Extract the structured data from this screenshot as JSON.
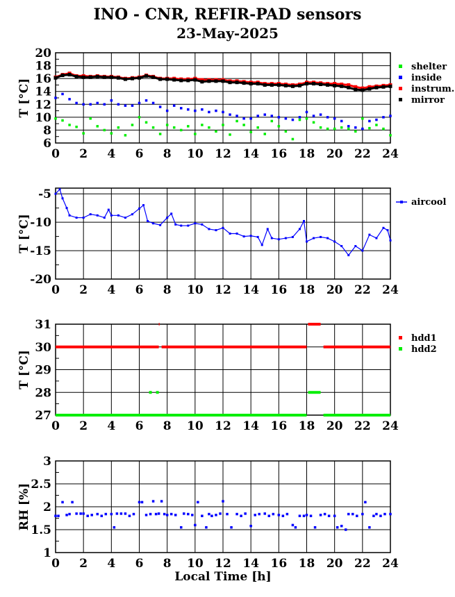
{
  "title": "INO - CNR, REFIR-PAD sensors",
  "date": "23-May-2025",
  "colors": {
    "red": "#ff0000",
    "blue": "#0000ff",
    "green": "#00ee00",
    "black": "#000000"
  },
  "chart_data": [
    {
      "type": "scatter",
      "ylabel": "T [°C]",
      "xlim": [
        0,
        24
      ],
      "ylim": [
        6,
        20
      ],
      "xticks": [
        "0",
        "2",
        "4",
        "6",
        "8",
        "10",
        "12",
        "14",
        "16",
        "18",
        "20",
        "22",
        "24"
      ],
      "yticks": [
        "6",
        "8",
        "10",
        "12",
        "14",
        "16",
        "18",
        "20"
      ],
      "legend_position": "right",
      "series": [
        {
          "name": "shelter",
          "color": "#00ee00",
          "x": [
            0,
            0.5,
            1,
            1.5,
            2,
            2.5,
            3,
            3.5,
            4,
            4.5,
            5,
            5.5,
            6,
            6.5,
            7,
            7.5,
            8,
            8.5,
            9,
            9.5,
            10,
            10.5,
            11,
            11.5,
            12,
            12.5,
            13,
            13.5,
            14,
            14.5,
            15,
            15.5,
            16,
            16.5,
            17,
            17.5,
            18,
            18.5,
            19,
            19.5,
            20,
            20.5,
            21,
            21.5,
            22,
            22.5,
            23,
            23.5,
            24
          ],
          "y": [
            9.8,
            9.5,
            8.8,
            8.5,
            7.5,
            9.8,
            8.6,
            8,
            7.5,
            8.4,
            7.2,
            8.8,
            10,
            9.2,
            8.4,
            7.4,
            8.8,
            8.4,
            8,
            8.6,
            7.4,
            8.8,
            8.4,
            7.8,
            8.8,
            7.3,
            9.4,
            8.8,
            7.7,
            8.4,
            7.4,
            9.4,
            8.6,
            7.8,
            6.6,
            9.6,
            9.8,
            9.2,
            8.4,
            8.2,
            8.2,
            8.4,
            8.2,
            7.8,
            9.8,
            8.3,
            8.8,
            8.2,
            7.2
          ]
        },
        {
          "name": "inside",
          "color": "#0000ff",
          "x": [
            0,
            0.5,
            1,
            1.5,
            2,
            2.5,
            3,
            3.5,
            4,
            4.5,
            5,
            5.5,
            6,
            6.5,
            7,
            7.5,
            8,
            8.5,
            9,
            9.5,
            10,
            10.5,
            11,
            11.5,
            12,
            12.5,
            13,
            13.5,
            14,
            14.5,
            15,
            15.5,
            16,
            16.5,
            17,
            17.5,
            18,
            18.5,
            19,
            19.5,
            20,
            20.5,
            21,
            21.5,
            22,
            22.5,
            23,
            23.5,
            24
          ],
          "y": [
            13,
            13.6,
            12.8,
            12.2,
            12,
            12,
            12.2,
            12,
            12.6,
            12,
            11.8,
            11.8,
            12.2,
            12.6,
            12.2,
            11.6,
            11,
            11.8,
            11.4,
            11.2,
            11,
            11.2,
            10.8,
            11,
            10.8,
            10.4,
            10.2,
            9.8,
            9.8,
            10.2,
            10.4,
            10.2,
            10,
            9.8,
            9.6,
            10,
            10.8,
            10.2,
            10.4,
            10,
            9.8,
            9.4,
            8.6,
            8.4,
            8.2,
            9.4,
            9.6,
            10,
            10.2
          ]
        },
        {
          "name": "instrum.",
          "color": "#ff0000",
          "x": [
            0,
            0.5,
            1,
            1.5,
            2,
            2.5,
            3,
            3.5,
            4,
            4.5,
            5,
            5.5,
            6,
            6.5,
            7,
            7.5,
            8,
            8.5,
            9,
            9.5,
            10,
            10.5,
            11,
            11.5,
            12,
            12.5,
            13,
            13.5,
            14,
            14.5,
            15,
            15.5,
            16,
            16.5,
            17,
            17.5,
            18,
            18.5,
            19,
            19.5,
            20,
            20.5,
            21,
            21.5,
            22,
            22.5,
            23,
            23.5,
            24
          ],
          "y": [
            16.2,
            16.6,
            16.8,
            16.4,
            16.4,
            16.3,
            16.4,
            16.3,
            16.3,
            16.2,
            16,
            16.1,
            16.2,
            16.5,
            16.3,
            16,
            16,
            16,
            15.9,
            15.9,
            16,
            15.8,
            15.8,
            15.8,
            15.8,
            15.6,
            15.6,
            15.5,
            15.4,
            15.4,
            15.2,
            15.2,
            15.2,
            15.1,
            15,
            15.1,
            15.4,
            15.4,
            15.3,
            15.2,
            15.2,
            15.1,
            15,
            14.7,
            14.5,
            14.7,
            14.8,
            14.9,
            15
          ]
        },
        {
          "name": "mirror",
          "color": "#000000",
          "x": [
            0,
            0.5,
            1,
            1.5,
            2,
            2.5,
            3,
            3.5,
            4,
            4.5,
            5,
            5.5,
            6,
            6.5,
            7,
            7.5,
            8,
            8.5,
            9,
            9.5,
            10,
            10.5,
            11,
            11.5,
            12,
            12.5,
            13,
            13.5,
            14,
            14.5,
            15,
            15.5,
            16,
            16.5,
            17,
            17.5,
            18,
            18.5,
            19,
            19.5,
            20,
            20.5,
            21,
            21.5,
            22,
            22.5,
            23,
            23.5,
            24
          ],
          "y": [
            16.1,
            16.5,
            16.6,
            16.3,
            16.2,
            16.2,
            16.3,
            16.2,
            16.2,
            16.1,
            15.9,
            16,
            16.1,
            16.4,
            16.2,
            15.9,
            15.9,
            15.8,
            15.7,
            15.7,
            15.8,
            15.5,
            15.6,
            15.6,
            15.6,
            15.4,
            15.4,
            15.3,
            15.2,
            15.2,
            15,
            15,
            15,
            14.9,
            14.8,
            14.9,
            15.2,
            15.2,
            15.1,
            15,
            14.9,
            14.8,
            14.6,
            14.3,
            14.2,
            14.4,
            14.6,
            14.7,
            14.8
          ]
        }
      ]
    },
    {
      "type": "line",
      "ylabel": "T [°C]",
      "xlim": [
        0,
        24
      ],
      "ylim": [
        -20,
        -4
      ],
      "xticks": [
        "0",
        "2",
        "4",
        "6",
        "8",
        "10",
        "12",
        "14",
        "16",
        "18",
        "20",
        "22",
        "24"
      ],
      "yticks": [
        "-20",
        "-15",
        "-10",
        "-5"
      ],
      "legend_position": "right",
      "series": [
        {
          "name": "aircool",
          "color": "#0000ff",
          "x": [
            0,
            0.3,
            0.5,
            0.8,
            1,
            1.5,
            2,
            2.5,
            3,
            3.5,
            3.8,
            4,
            4.5,
            5,
            5.5,
            6,
            6.3,
            6.6,
            7,
            7.5,
            8,
            8.3,
            8.6,
            9,
            9.5,
            10,
            10.5,
            11,
            11.5,
            12,
            12.5,
            13,
            13.5,
            14,
            14.5,
            14.8,
            15.2,
            15.5,
            16,
            16.5,
            17,
            17.5,
            17.8,
            18,
            18.5,
            19,
            19.5,
            20,
            20.5,
            21,
            21.5,
            22,
            22.5,
            23,
            23.5,
            23.8,
            24
          ],
          "y": [
            -5,
            -4.2,
            -5.8,
            -7.5,
            -8.8,
            -9.2,
            -9.2,
            -8.6,
            -8.8,
            -9.2,
            -7.8,
            -8.8,
            -8.8,
            -9.2,
            -8.6,
            -7.6,
            -7,
            -9.8,
            -10.2,
            -10.5,
            -9.2,
            -8.5,
            -10.4,
            -10.6,
            -10.6,
            -10.2,
            -10.4,
            -11.2,
            -11.4,
            -11,
            -12,
            -12,
            -12.5,
            -12.4,
            -12.6,
            -14,
            -11.2,
            -12.8,
            -13,
            -12.8,
            -12.6,
            -11.2,
            -9.8,
            -13.4,
            -12.8,
            -12.6,
            -12.8,
            -13.4,
            -14.2,
            -15.8,
            -14.2,
            -15,
            -12.2,
            -12.8,
            -11,
            -11.4,
            -13.2
          ]
        }
      ]
    },
    {
      "type": "scatter",
      "ylabel": "T [°C]",
      "xlim": [
        0,
        24
      ],
      "ylim": [
        27,
        31
      ],
      "xticks": [
        "0",
        "2",
        "4",
        "6",
        "8",
        "10",
        "12",
        "14",
        "16",
        "18",
        "20",
        "22",
        "24"
      ],
      "yticks": [
        "27",
        "28",
        "29",
        "30",
        "31"
      ],
      "legend_position": "right",
      "series": [
        {
          "name": "hdd1",
          "color": "#ff0000",
          "segments": [
            [
              0,
              7.4,
              30
            ],
            [
              7.4,
              7.45,
              31
            ],
            [
              7.6,
              18,
              30
            ],
            [
              18.1,
              19.0,
              31
            ],
            [
              19.2,
              24,
              30
            ]
          ]
        },
        {
          "name": "hdd2",
          "color": "#00ee00",
          "segments": [
            [
              0,
              18,
              27
            ],
            [
              6.7,
              6.9,
              28
            ],
            [
              7.2,
              7.4,
              28
            ],
            [
              18.1,
              19.0,
              28
            ],
            [
              19.2,
              24,
              27
            ]
          ]
        }
      ]
    },
    {
      "type": "scatter",
      "ylabel": "RH [%]",
      "xlabel": "Local Time [h]",
      "xlim": [
        0,
        24
      ],
      "ylim": [
        1,
        3
      ],
      "xticks": [
        "0",
        "2",
        "4",
        "6",
        "8",
        "10",
        "12",
        "14",
        "16",
        "18",
        "20",
        "22",
        "24"
      ],
      "yticks": [
        "1",
        "1.5",
        "2",
        "2.5",
        "3"
      ],
      "series": [
        {
          "name": "rh",
          "color": "#0000ff",
          "x": [
            0,
            0.2,
            0.5,
            0.8,
            1,
            1.2,
            1.5,
            1.8,
            2,
            2.3,
            2.6,
            3,
            3.3,
            3.6,
            4,
            4.2,
            4.4,
            4.7,
            5,
            5.3,
            5.6,
            6,
            6.2,
            6.5,
            6.8,
            7,
            7.2,
            7.4,
            7.6,
            7.8,
            8,
            8.3,
            8.6,
            9,
            9.2,
            9.5,
            9.8,
            10,
            10.2,
            10.5,
            10.8,
            11,
            11.2,
            11.5,
            11.8,
            12,
            12.3,
            12.6,
            13,
            13.3,
            13.6,
            14,
            14.3,
            14.6,
            15,
            15.3,
            15.6,
            16,
            16.3,
            16.6,
            17,
            17.2,
            17.5,
            17.8,
            18,
            18.3,
            18.6,
            19,
            19.3,
            19.6,
            20,
            20.2,
            20.5,
            20.8,
            21,
            21.3,
            21.6,
            22,
            22.2,
            22.5,
            22.8,
            23,
            23.3,
            23.6,
            24
          ],
          "y": [
            1.8,
            1.8,
            2.1,
            1.82,
            1.84,
            2.1,
            1.85,
            1.85,
            1.85,
            1.8,
            1.82,
            1.84,
            1.8,
            1.84,
            1.84,
            1.55,
            1.85,
            1.85,
            1.85,
            1.8,
            1.84,
            2.1,
            2.1,
            1.82,
            1.84,
            2.12,
            1.84,
            1.85,
            2.12,
            1.84,
            1.82,
            1.84,
            1.82,
            1.55,
            1.85,
            1.84,
            1.82,
            1.6,
            2.1,
            1.8,
            1.55,
            1.84,
            1.8,
            1.82,
            1.85,
            2.12,
            1.84,
            1.55,
            1.84,
            1.8,
            1.85,
            1.58,
            1.82,
            1.84,
            1.85,
            1.8,
            1.84,
            1.82,
            1.8,
            1.84,
            1.6,
            1.55,
            1.8,
            1.8,
            1.82,
            1.8,
            1.55,
            1.82,
            1.84,
            1.8,
            1.8,
            1.55,
            1.58,
            1.5,
            1.84,
            1.84,
            1.8,
            1.84,
            2.1,
            1.55,
            1.8,
            1.84,
            1.8,
            1.84,
            1.84
          ]
        }
      ]
    }
  ]
}
